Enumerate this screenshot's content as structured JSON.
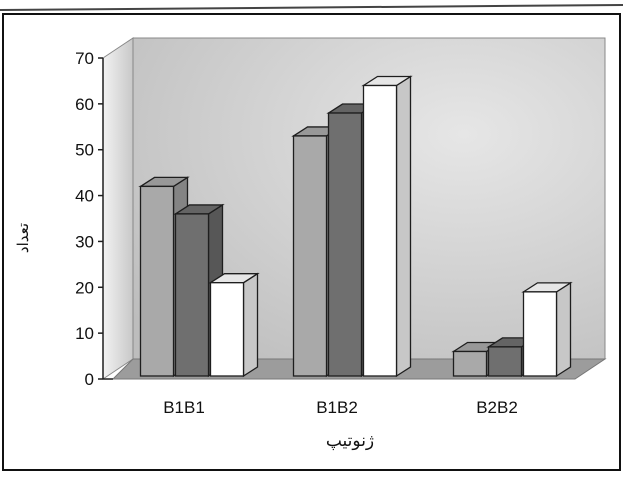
{
  "chart_data": {
    "type": "bar",
    "categories": [
      "B1B1",
      "B1B2",
      "B2B2"
    ],
    "series": [
      {
        "values": [
          42,
          53,
          6
        ],
        "color": "#a9a9a9"
      },
      {
        "values": [
          36,
          58,
          7
        ],
        "color": "#6f6f6f"
      },
      {
        "values": [
          21,
          64,
          19
        ],
        "color": "#ffffff"
      }
    ],
    "ylim": [
      0,
      70
    ],
    "yticks": [
      "0",
      "10",
      "20",
      "30",
      "40",
      "50",
      "60",
      "70"
    ],
    "xlabel": "ژنوتیپ",
    "ylabel": "تعداد",
    "title": "",
    "grid": false,
    "legend": "none",
    "style": "3d-clustered-column",
    "colors": {
      "wall": "#d4d4d4",
      "floor": "#9c9c9c",
      "outline": "#1e1e1e"
    }
  }
}
